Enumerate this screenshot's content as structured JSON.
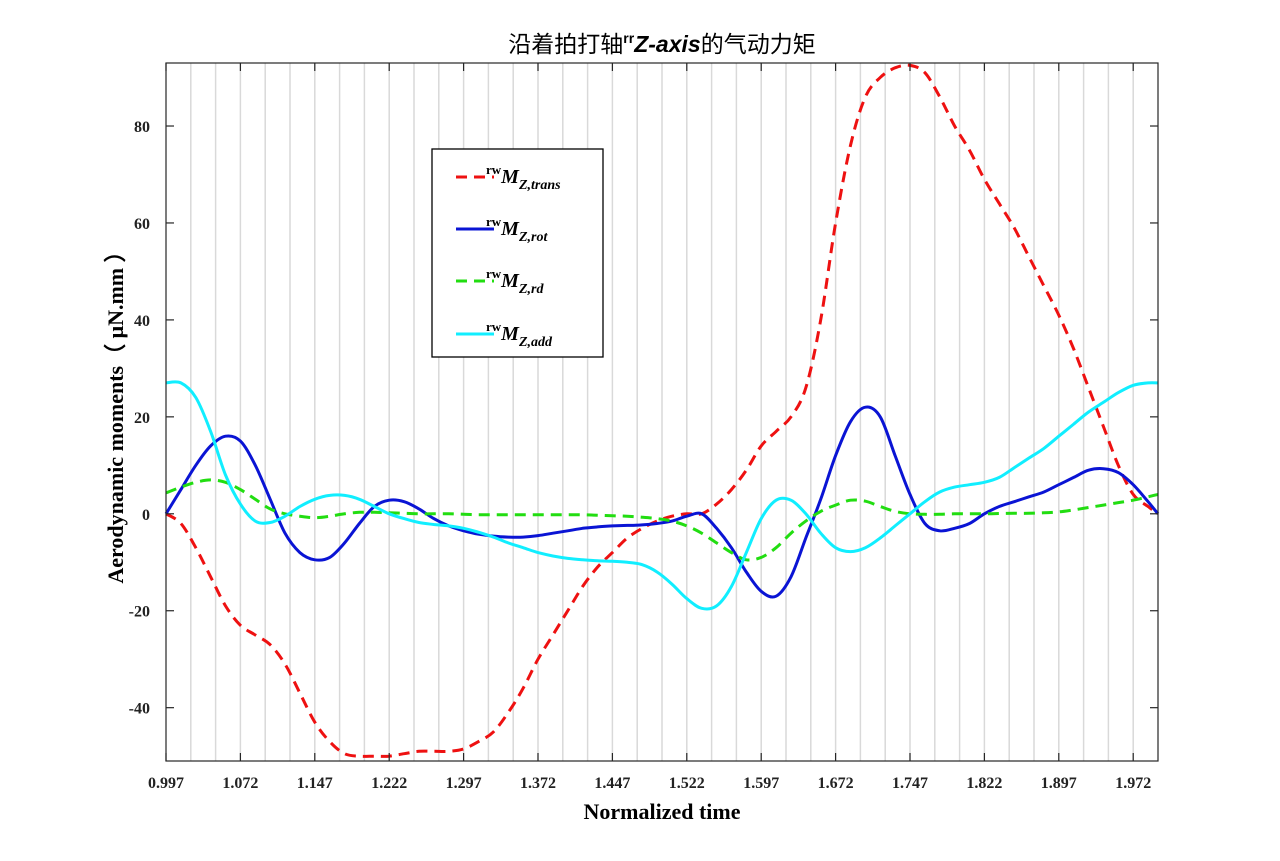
{
  "chart_data": {
    "type": "line",
    "title": {
      "prefix": "沿着拍打轴",
      "sup": "rr",
      "axis_name": "Z-axis",
      "suffix": "的气动力矩"
    },
    "xlabel": "Normalized time",
    "ylabel": "Aerodynamic moments（ μN.mm ）",
    "xlim": [
      0.997,
      1.997
    ],
    "ylim": [
      -51,
      93
    ],
    "x_ticks": [
      0.997,
      1.072,
      1.147,
      1.222,
      1.297,
      1.372,
      1.447,
      1.522,
      1.597,
      1.672,
      1.747,
      1.822,
      1.897,
      1.972
    ],
    "x_tick_labels": [
      "0.997",
      "1.072",
      "1.147",
      "1.222",
      "1.297",
      "1.372",
      "1.447",
      "1.522",
      "1.597",
      "1.672",
      "1.747",
      "1.822",
      "1.897",
      "1.972"
    ],
    "y_ticks": [
      -40,
      -20,
      0,
      20,
      40,
      60,
      80
    ],
    "y_tick_labels": [
      "-40",
      "-20",
      "0",
      "20",
      "40",
      "60",
      "80"
    ],
    "vertical_grid_step": 0.025,
    "grid": "vertical",
    "legend_position": "upper-left",
    "series": [
      {
        "key": "trans",
        "legend_sup": "rw",
        "legend_main": "M",
        "legend_sub": "Z,trans",
        "color": "#ee1111",
        "dash": "dashed",
        "x": [
          0.997,
          1.012,
          1.027,
          1.042,
          1.057,
          1.072,
          1.087,
          1.102,
          1.117,
          1.132,
          1.147,
          1.162,
          1.177,
          1.192,
          1.207,
          1.222,
          1.237,
          1.252,
          1.267,
          1.282,
          1.297,
          1.312,
          1.327,
          1.342,
          1.357,
          1.372,
          1.387,
          1.402,
          1.417,
          1.432,
          1.447,
          1.462,
          1.477,
          1.492,
          1.507,
          1.522,
          1.537,
          1.552,
          1.567,
          1.582,
          1.597,
          1.612,
          1.627,
          1.642,
          1.657,
          1.672,
          1.687,
          1.702,
          1.717,
          1.732,
          1.747,
          1.762,
          1.777,
          1.792,
          1.807,
          1.822,
          1.837,
          1.852,
          1.867,
          1.882,
          1.897,
          1.912,
          1.927,
          1.942,
          1.957,
          1.972,
          1.987,
          1.997
        ],
        "values": [
          0,
          -2,
          -7,
          -13,
          -19,
          -23,
          -25,
          -27,
          -31,
          -37,
          -43,
          -47,
          -49.5,
          -50,
          -50,
          -50,
          -49.5,
          -49,
          -49,
          -49,
          -48.5,
          -47,
          -45,
          -41,
          -36,
          -30,
          -25,
          -20,
          -15,
          -11,
          -8,
          -5,
          -3,
          -1.5,
          -0.5,
          0,
          0,
          2,
          5,
          9,
          14,
          17,
          20,
          26,
          40,
          60,
          76,
          86,
          90,
          92,
          92.5,
          91,
          86,
          80,
          75,
          69,
          64,
          59,
          53,
          47,
          41,
          34,
          26,
          18,
          10,
          4,
          1.5,
          0
        ]
      },
      {
        "key": "rot",
        "legend_sup": "rw",
        "legend_main": "M",
        "legend_sub": "Z,rot",
        "color": "#0a14d4",
        "dash": "solid",
        "x": [
          0.997,
          1.012,
          1.027,
          1.042,
          1.057,
          1.072,
          1.087,
          1.102,
          1.117,
          1.132,
          1.147,
          1.162,
          1.177,
          1.192,
          1.207,
          1.222,
          1.237,
          1.252,
          1.267,
          1.282,
          1.297,
          1.312,
          1.327,
          1.342,
          1.357,
          1.372,
          1.387,
          1.402,
          1.417,
          1.432,
          1.447,
          1.462,
          1.477,
          1.492,
          1.507,
          1.522,
          1.537,
          1.552,
          1.567,
          1.582,
          1.597,
          1.612,
          1.627,
          1.642,
          1.657,
          1.672,
          1.687,
          1.702,
          1.717,
          1.732,
          1.747,
          1.762,
          1.777,
          1.792,
          1.807,
          1.822,
          1.837,
          1.852,
          1.867,
          1.882,
          1.897,
          1.912,
          1.927,
          1.942,
          1.957,
          1.972,
          1.987,
          1.997
        ],
        "values": [
          0,
          5,
          10,
          14,
          16,
          15,
          10,
          3,
          -4,
          -8,
          -9.5,
          -9,
          -6,
          -2,
          1.5,
          2.8,
          2.5,
          1,
          -1,
          -2.5,
          -3.5,
          -4.2,
          -4.6,
          -4.8,
          -4.8,
          -4.5,
          -4,
          -3.5,
          -3,
          -2.7,
          -2.5,
          -2.4,
          -2.3,
          -2,
          -1.5,
          -0.5,
          0,
          -3,
          -7,
          -12,
          -16,
          -17,
          -13,
          -5,
          3,
          12,
          19,
          22,
          20,
          12,
          4,
          -2,
          -3.5,
          -3,
          -2,
          0,
          1.5,
          2.5,
          3.5,
          4.5,
          6,
          7.5,
          9,
          9.3,
          8.5,
          6,
          2.5,
          0
        ]
      },
      {
        "key": "rd",
        "legend_sup": "rw",
        "legend_main": "M",
        "legend_sub": "Z,rd",
        "color": "#22dd11",
        "dash": "dashed",
        "x": [
          0.997,
          1.012,
          1.027,
          1.042,
          1.057,
          1.072,
          1.087,
          1.102,
          1.117,
          1.132,
          1.147,
          1.162,
          1.177,
          1.192,
          1.207,
          1.222,
          1.237,
          1.252,
          1.267,
          1.282,
          1.297,
          1.312,
          1.327,
          1.342,
          1.357,
          1.372,
          1.387,
          1.402,
          1.417,
          1.432,
          1.447,
          1.462,
          1.477,
          1.492,
          1.507,
          1.522,
          1.537,
          1.552,
          1.567,
          1.582,
          1.597,
          1.612,
          1.627,
          1.642,
          1.657,
          1.672,
          1.687,
          1.702,
          1.717,
          1.732,
          1.747,
          1.762,
          1.777,
          1.792,
          1.807,
          1.822,
          1.837,
          1.852,
          1.867,
          1.882,
          1.897,
          1.912,
          1.927,
          1.942,
          1.957,
          1.972,
          1.987,
          1.997
        ],
        "values": [
          4.3,
          5.5,
          6.5,
          7,
          6.5,
          5,
          3,
          1,
          0,
          -0.5,
          -0.8,
          -0.5,
          0,
          0.3,
          0.3,
          0.2,
          0.1,
          0,
          0,
          0,
          -0.1,
          -0.2,
          -0.2,
          -0.2,
          -0.2,
          -0.2,
          -0.2,
          -0.2,
          -0.2,
          -0.3,
          -0.4,
          -0.5,
          -0.7,
          -1,
          -1.5,
          -2.5,
          -4,
          -6,
          -8,
          -9.5,
          -9,
          -7,
          -4,
          -1.5,
          0.5,
          1.8,
          2.8,
          2.6,
          1.5,
          0.5,
          0,
          -0.1,
          -0.1,
          0,
          0,
          0,
          0.05,
          0.1,
          0.1,
          0.2,
          0.4,
          0.8,
          1.3,
          1.8,
          2.3,
          2.8,
          3.5,
          4
        ]
      },
      {
        "key": "add",
        "legend_sup": "rw",
        "legend_main": "M",
        "legend_sub": "Z,add",
        "color": "#11eeff",
        "dash": "solid",
        "x": [
          0.997,
          1.012,
          1.027,
          1.042,
          1.057,
          1.072,
          1.087,
          1.102,
          1.117,
          1.132,
          1.147,
          1.162,
          1.177,
          1.192,
          1.207,
          1.222,
          1.237,
          1.252,
          1.267,
          1.282,
          1.297,
          1.312,
          1.327,
          1.342,
          1.357,
          1.372,
          1.387,
          1.402,
          1.417,
          1.432,
          1.447,
          1.462,
          1.477,
          1.492,
          1.507,
          1.522,
          1.537,
          1.552,
          1.567,
          1.582,
          1.597,
          1.612,
          1.627,
          1.642,
          1.657,
          1.672,
          1.687,
          1.702,
          1.717,
          1.732,
          1.747,
          1.762,
          1.777,
          1.792,
          1.807,
          1.822,
          1.837,
          1.852,
          1.867,
          1.882,
          1.897,
          1.912,
          1.927,
          1.942,
          1.957,
          1.972,
          1.987,
          1.997
        ],
        "values": [
          27,
          27,
          24,
          17,
          8,
          2,
          -1.5,
          -1.8,
          -0.5,
          1.5,
          3,
          3.8,
          3.8,
          3,
          1.5,
          0,
          -1,
          -1.8,
          -2.2,
          -2.5,
          -3,
          -3.8,
          -4.8,
          -6,
          -7,
          -8,
          -8.7,
          -9.2,
          -9.5,
          -9.7,
          -9.8,
          -10,
          -10.5,
          -12,
          -14.5,
          -17.5,
          -19.5,
          -19,
          -15,
          -8,
          -1,
          2.8,
          2.8,
          0,
          -4,
          -7,
          -7.8,
          -7,
          -5,
          -2.5,
          0,
          2.5,
          4.5,
          5.5,
          6,
          6.5,
          7.5,
          9.5,
          11.5,
          13.5,
          16,
          18.5,
          21,
          23,
          25,
          26.5,
          27,
          27
        ]
      }
    ]
  }
}
